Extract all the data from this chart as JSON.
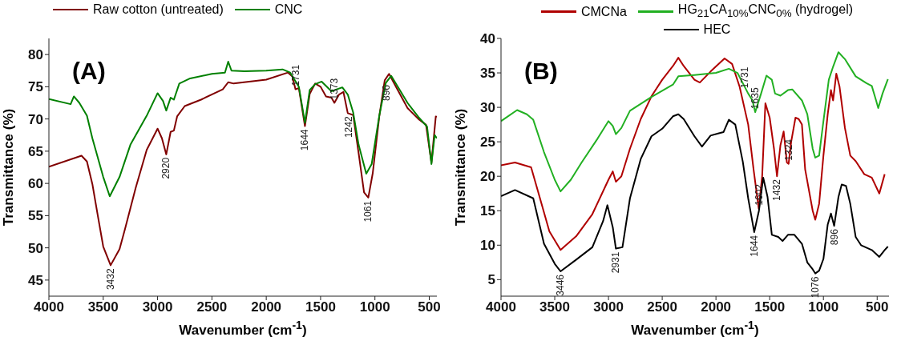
{
  "chart_data": [
    {
      "type": "line",
      "xlabel": "Wavenumber (cm$^{-1}$)",
      "ylabel": "Transmittance (%)",
      "xlim": [
        4000,
        430
      ],
      "xticks": [
        4000,
        3500,
        3000,
        2500,
        2000,
        1500,
        1000,
        500
      ],
      "ylim": [
        42.5,
        82.5
      ],
      "yticks": [
        45,
        50,
        55,
        60,
        65,
        70,
        75,
        80
      ],
      "grid": false,
      "legend": "top left",
      "annotations": [
        "(A)",
        {
          "text": "3432",
          "x": 3432,
          "y": 47.3
        },
        {
          "text": "2920",
          "x": 2920,
          "y": 64.5
        },
        {
          "text": "1731",
          "x": 1731,
          "y": 74.6
        },
        {
          "text": "1644",
          "x": 1644,
          "y": 68.9
        },
        {
          "text": "1373",
          "x": 1373,
          "y": 72.5
        },
        {
          "text": "1242",
          "x": 1242,
          "y": 70.9
        },
        {
          "text": "1061",
          "x": 1061,
          "y": 57.8
        },
        {
          "text": "896",
          "x": 896,
          "y": 75.8
        }
      ],
      "series": [
        {
          "name": "Raw cotton (untreated)",
          "color": "#800000",
          "x": [
            4000,
            3700,
            3650,
            3600,
            3550,
            3500,
            3432,
            3350,
            3300,
            3200,
            3100,
            3000,
            2960,
            2920,
            2880,
            2850,
            2820,
            2750,
            2600,
            2400,
            2350,
            2300,
            2000,
            1800,
            1760,
            1731,
            1700,
            1644,
            1600,
            1550,
            1500,
            1450,
            1400,
            1373,
            1330,
            1290,
            1250,
            1200,
            1150,
            1100,
            1061,
            1020,
            960,
            910,
            870,
            800,
            700,
            600,
            530,
            480,
            440,
            430
          ],
          "values": [
            62.6,
            64.3,
            63.4,
            59.9,
            55,
            50.2,
            47.3,
            49.8,
            52.9,
            59.4,
            65.2,
            68.5,
            67,
            64.5,
            68,
            68.2,
            70.4,
            72,
            73,
            74.6,
            75.7,
            75.5,
            76.1,
            77.2,
            76.6,
            74.6,
            74.8,
            68.9,
            73.9,
            75.5,
            75,
            73.5,
            73.3,
            72.5,
            73.8,
            74.2,
            70.9,
            70.6,
            64.7,
            58.6,
            57.8,
            61.6,
            70.4,
            76,
            77,
            74.8,
            71.7,
            70,
            69.1,
            63.2,
            70.4,
            70.3
          ]
        },
        {
          "name": "CNC",
          "color": "#008000",
          "x": [
            4000,
            3800,
            3770,
            3720,
            3650,
            3600,
            3500,
            3440,
            3350,
            3250,
            3100,
            3000,
            2950,
            2920,
            2880,
            2850,
            2800,
            2700,
            2500,
            2380,
            2350,
            2320,
            2200,
            2000,
            1850,
            1780,
            1700,
            1644,
            1600,
            1550,
            1490,
            1400,
            1300,
            1250,
            1200,
            1150,
            1080,
            1030,
            960,
            900,
            850,
            800,
            700,
            600,
            520,
            480,
            450,
            430
          ],
          "values": [
            73.1,
            72.3,
            73.5,
            72.5,
            70.5,
            67,
            61,
            58,
            61,
            66,
            70.5,
            74,
            72.8,
            71.3,
            73.3,
            73,
            75.5,
            76.3,
            77,
            77.2,
            78.9,
            77.5,
            77.4,
            77.5,
            77.7,
            77.2,
            75,
            69.4,
            74.5,
            75.4,
            75.8,
            74.3,
            74.9,
            73.8,
            71,
            66,
            61.5,
            63,
            70.5,
            75.6,
            76.7,
            75.3,
            72.5,
            70.3,
            68.8,
            63,
            67.5,
            67
          ]
        }
      ]
    },
    {
      "type": "line",
      "xlabel": "Wavenumber (cm$^{-1}$)",
      "ylabel": "Transmittance (%)",
      "xlim": [
        4000,
        390
      ],
      "xticks": [
        4000,
        3500,
        3000,
        2500,
        2000,
        1500,
        1000,
        500
      ],
      "ylim": [
        2.6,
        40
      ],
      "yticks": [
        5,
        10,
        15,
        20,
        25,
        30,
        35,
        40
      ],
      "grid": false,
      "legend": "top",
      "annotations": [
        "(B)",
        {
          "text": "3446",
          "x": 3446,
          "y": 6.2
        },
        {
          "text": "2931",
          "x": 2931,
          "y": 9.5
        },
        {
          "text": "1731",
          "x": 1731,
          "y": 32.3
        },
        {
          "text": "1635",
          "x": 1635,
          "y": 29.3
        },
        {
          "text": "1644",
          "x": 1644,
          "y": 11.9
        },
        {
          "text": "1602",
          "x": 1602,
          "y": 15.3
        },
        {
          "text": "1432",
          "x": 1432,
          "y": 20
        },
        {
          "text": "1324",
          "x": 1324,
          "y": 21.8
        },
        {
          "text": "1076",
          "x": 1076,
          "y": 5.9
        },
        {
          "text": "896",
          "x": 896,
          "y": 12.8
        }
      ],
      "series": [
        {
          "name": "CMCNa",
          "color": "#b00000",
          "x": [
            4000,
            3870,
            3720,
            3650,
            3550,
            3446,
            3300,
            3150,
            3000,
            2960,
            2931,
            2880,
            2800,
            2700,
            2600,
            2500,
            2400,
            2350,
            2300,
            2200,
            2150,
            2050,
            1920,
            1850,
            1780,
            1700,
            1650,
            1602,
            1570,
            1540,
            1500,
            1460,
            1432,
            1400,
            1370,
            1340,
            1324,
            1300,
            1260,
            1230,
            1200,
            1170,
            1100,
            1076,
            1040,
            1000,
            960,
            930,
            910,
            880,
            850,
            800,
            750,
            700,
            620,
            550,
            480,
            430
          ],
          "values": [
            21.6,
            22,
            21.3,
            17.5,
            12,
            9.3,
            11.3,
            14.5,
            19.5,
            20.7,
            19.2,
            20,
            24,
            28.3,
            31.6,
            34,
            36,
            37.2,
            36,
            34,
            33.6,
            35.2,
            37.1,
            36.3,
            33,
            27.5,
            21,
            15.3,
            20,
            30.6,
            28.5,
            24,
            20,
            24.5,
            26.5,
            22,
            21.8,
            25,
            28.5,
            28.3,
            27.5,
            21,
            15,
            13.7,
            16,
            23,
            29,
            32.5,
            31,
            34.9,
            33,
            27,
            23,
            22.2,
            20.3,
            19.8,
            17.5,
            20.3
          ]
        },
        {
          "name": "HG$_{21}$CA$_{10%}$CNC$_{0%}$ (hydrogel)",
          "color": "#22b022",
          "x": [
            4000,
            3850,
            3760,
            3700,
            3600,
            3500,
            3446,
            3350,
            3250,
            3100,
            3000,
            2960,
            2931,
            2880,
            2800,
            2600,
            2400,
            2350,
            2200,
            2000,
            1880,
            1800,
            1700,
            1660,
            1635,
            1580,
            1530,
            1480,
            1450,
            1400,
            1330,
            1290,
            1200,
            1150,
            1100,
            1076,
            1040,
            1000,
            950,
            910,
            860,
            800,
            700,
            600,
            550,
            510,
            490,
            450,
            400
          ],
          "values": [
            28,
            29.6,
            29,
            28.2,
            23.5,
            19.5,
            17.8,
            19.5,
            22,
            25.5,
            28,
            27.3,
            26.1,
            27,
            29.5,
            31.5,
            33.3,
            34.5,
            34.7,
            35,
            35.6,
            35,
            32,
            31,
            29.3,
            32,
            34.6,
            34,
            32,
            31.7,
            32.5,
            32.6,
            31,
            29,
            24,
            22.7,
            23,
            28,
            34,
            35.9,
            38,
            37,
            34.5,
            33.5,
            33.1,
            31,
            29.9,
            32,
            34.1
          ]
        },
        {
          "name": "HEC",
          "color": "#000000",
          "x": [
            4000,
            3870,
            3700,
            3600,
            3500,
            3446,
            3300,
            3150,
            3050,
            3010,
            2960,
            2931,
            2870,
            2800,
            2700,
            2600,
            2500,
            2400,
            2350,
            2300,
            2200,
            2130,
            2050,
            1980,
            1930,
            1880,
            1820,
            1750,
            1700,
            1644,
            1600,
            1560,
            1520,
            1480,
            1420,
            1380,
            1330,
            1270,
            1200,
            1150,
            1100,
            1076,
            1040,
            1000,
            960,
            930,
            900,
            860,
            830,
            790,
            750,
            700,
            650,
            550,
            480,
            430,
            400
          ],
          "values": [
            17.1,
            18,
            16.8,
            10.2,
            7.3,
            6.2,
            7.9,
            9.7,
            13.5,
            15.8,
            12.6,
            9.5,
            9.7,
            16.8,
            22.5,
            25.8,
            26.9,
            28.7,
            29,
            28.3,
            25.8,
            24.3,
            25.9,
            26.2,
            26.4,
            28.2,
            27.5,
            22.1,
            16.8,
            11.9,
            15,
            19.8,
            17,
            11.5,
            11.2,
            10.6,
            11.5,
            11.5,
            10.2,
            7.5,
            6.5,
            5.9,
            6.3,
            8,
            13,
            14.6,
            12.8,
            17,
            18.8,
            18.6,
            16,
            11.2,
            10,
            9.3,
            8.3,
            9.3,
            9.8
          ]
        }
      ]
    }
  ]
}
